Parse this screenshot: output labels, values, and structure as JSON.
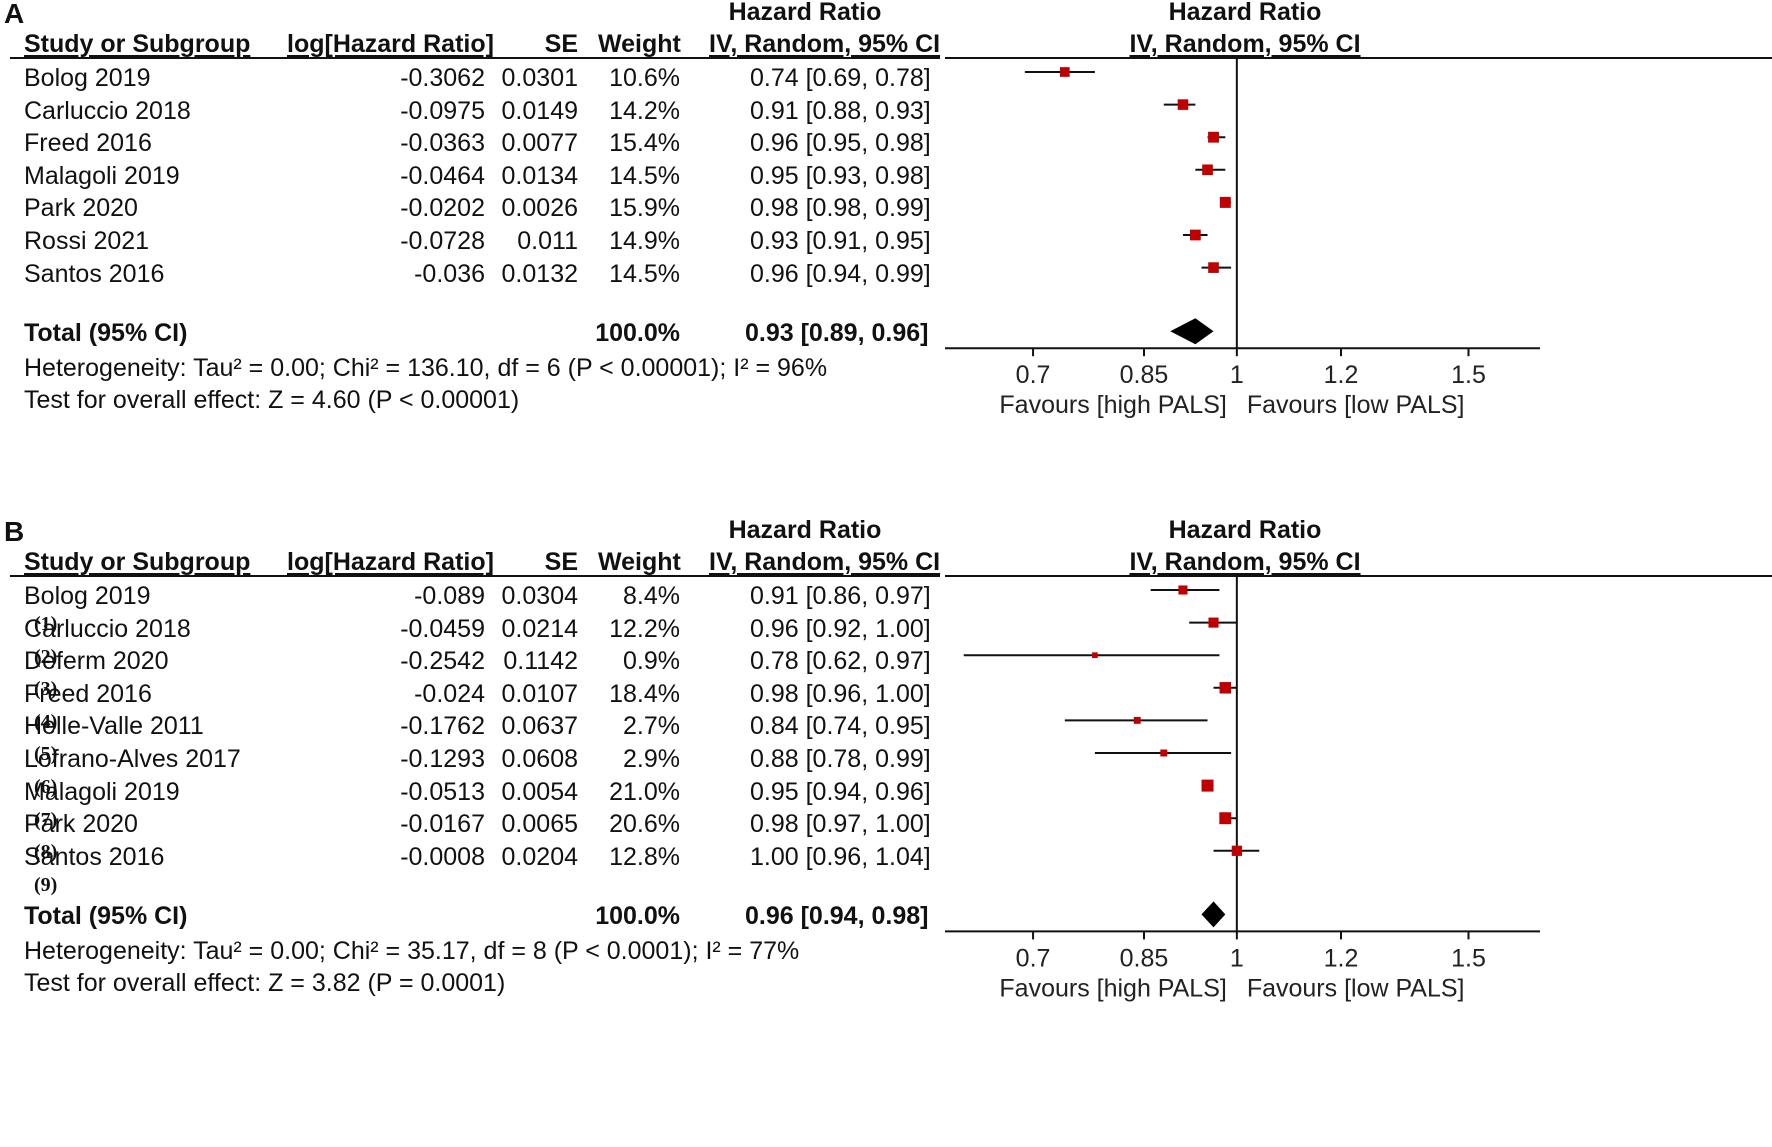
{
  "chart_data": [
    {
      "type": "forest",
      "panel_label": "A",
      "columns": {
        "study": "Study or Subgroup",
        "loghr": "log[Hazard Ratio]",
        "se": "SE",
        "weight": "Weight",
        "hr_title": "Hazard Ratio",
        "hr_sub": "IV, Random, 95% CI",
        "plot_title": "Hazard Ratio",
        "plot_sub": "IV, Random, 95% CI"
      },
      "studies": [
        {
          "name": "Bolog 2019",
          "note": "",
          "loghr": "-0.3062",
          "se": "0.0301",
          "weight": "10.6%",
          "ci_text": "0.74 [0.69, 0.78]",
          "hr": 0.74,
          "lo": 0.69,
          "hi": 0.78,
          "w": 10.6
        },
        {
          "name": "Carluccio 2018",
          "note": "",
          "loghr": "-0.0975",
          "se": "0.0149",
          "weight": "14.2%",
          "ci_text": "0.91 [0.88, 0.93]",
          "hr": 0.91,
          "lo": 0.88,
          "hi": 0.93,
          "w": 14.2
        },
        {
          "name": "Freed 2016",
          "note": "",
          "loghr": "-0.0363",
          "se": "0.0077",
          "weight": "15.4%",
          "ci_text": "0.96 [0.95, 0.98]",
          "hr": 0.96,
          "lo": 0.95,
          "hi": 0.98,
          "w": 15.4
        },
        {
          "name": "Malagoli 2019",
          "note": "",
          "loghr": "-0.0464",
          "se": "0.0134",
          "weight": "14.5%",
          "ci_text": "0.95 [0.93, 0.98]",
          "hr": 0.95,
          "lo": 0.93,
          "hi": 0.98,
          "w": 14.5
        },
        {
          "name": "Park 2020",
          "note": "",
          "loghr": "-0.0202",
          "se": "0.0026",
          "weight": "15.9%",
          "ci_text": "0.98 [0.98, 0.99]",
          "hr": 0.98,
          "lo": 0.98,
          "hi": 0.99,
          "w": 15.9
        },
        {
          "name": "Rossi 2021",
          "note": "",
          "loghr": "-0.0728",
          "se": "0.011",
          "weight": "14.9%",
          "ci_text": "0.93 [0.91, 0.95]",
          "hr": 0.93,
          "lo": 0.91,
          "hi": 0.95,
          "w": 14.9
        },
        {
          "name": "Santos 2016",
          "note": "",
          "loghr": "-0.036",
          "se": "0.0132",
          "weight": "14.5%",
          "ci_text": "0.96 [0.94, 0.99]",
          "hr": 0.96,
          "lo": 0.94,
          "hi": 0.99,
          "w": 14.5
        }
      ],
      "total": {
        "label": "Total (95% CI)",
        "weight": "100.0%",
        "ci_text": "0.93 [0.89, 0.96]",
        "hr": 0.93,
        "lo": 0.89,
        "hi": 0.96
      },
      "heterogeneity": "Heterogeneity: Tau² = 0.00; Chi² = 136.10, df = 6 (P < 0.00001); I² = 96%",
      "overall_effect": "Test for overall effect: Z = 4.60 (P < 0.00001)",
      "axis": {
        "scale": "log",
        "xlim": [
          0.6,
          1.7
        ],
        "ticks": [
          0.7,
          0.85,
          1,
          1.2,
          1.5
        ],
        "tick_labels": [
          "0.7",
          "0.85",
          "1",
          "1.2",
          "1.5"
        ],
        "null_line": 1
      },
      "favours_left": "Favours [high PALS]",
      "favours_right": "Favours [low PALS]"
    },
    {
      "type": "forest",
      "panel_label": "B",
      "columns": {
        "study": "Study or Subgroup",
        "loghr": "log[Hazard Ratio]",
        "se": "SE",
        "weight": "Weight",
        "hr_title": "Hazard Ratio",
        "hr_sub": "IV, Random, 95% CI",
        "plot_title": "Hazard Ratio",
        "plot_sub": "IV, Random, 95% CI"
      },
      "studies": [
        {
          "name": "Bolog 2019",
          "note": "(1)",
          "loghr": "-0.089",
          "se": "0.0304",
          "weight": "8.4%",
          "ci_text": "0.91 [0.86, 0.97]",
          "hr": 0.91,
          "lo": 0.86,
          "hi": 0.97,
          "w": 8.4
        },
        {
          "name": "Carluccio 2018",
          "note": "(2)",
          "loghr": "-0.0459",
          "se": "0.0214",
          "weight": "12.2%",
          "ci_text": "0.96 [0.92, 1.00]",
          "hr": 0.96,
          "lo": 0.92,
          "hi": 1.0,
          "w": 12.2
        },
        {
          "name": "Deferm 2020",
          "note": "(3)",
          "loghr": "-0.2542",
          "se": "0.1142",
          "weight": "0.9%",
          "ci_text": "0.78 [0.62, 0.97]",
          "hr": 0.78,
          "lo": 0.62,
          "hi": 0.97,
          "w": 0.9
        },
        {
          "name": "Freed 2016",
          "note": "(4)",
          "loghr": "-0.024",
          "se": "0.0107",
          "weight": "18.4%",
          "ci_text": "0.98 [0.96, 1.00]",
          "hr": 0.98,
          "lo": 0.96,
          "hi": 1.0,
          "w": 18.4
        },
        {
          "name": "Helle-Valle 2011",
          "note": "(5)",
          "loghr": "-0.1762",
          "se": "0.0637",
          "weight": "2.7%",
          "ci_text": "0.84 [0.74, 0.95]",
          "hr": 0.84,
          "lo": 0.74,
          "hi": 0.95,
          "w": 2.7
        },
        {
          "name": "Lofrano-Alves 2017",
          "note": "(6)",
          "loghr": "-0.1293",
          "se": "0.0608",
          "weight": "2.9%",
          "ci_text": "0.88 [0.78, 0.99]",
          "hr": 0.88,
          "lo": 0.78,
          "hi": 0.99,
          "w": 2.9
        },
        {
          "name": "Malagoli 2019",
          "note": "(7)",
          "loghr": "-0.0513",
          "se": "0.0054",
          "weight": "21.0%",
          "ci_text": "0.95 [0.94, 0.96]",
          "hr": 0.95,
          "lo": 0.94,
          "hi": 0.96,
          "w": 21.0
        },
        {
          "name": "Park 2020",
          "note": "(8)",
          "loghr": "-0.0167",
          "se": "0.0065",
          "weight": "20.6%",
          "ci_text": "0.98 [0.97, 1.00]",
          "hr": 0.98,
          "lo": 0.97,
          "hi": 1.0,
          "w": 20.6
        },
        {
          "name": "Santos 2016",
          "note": "(9)",
          "loghr": "-0.0008",
          "se": "0.0204",
          "weight": "12.8%",
          "ci_text": "1.00 [0.96, 1.04]",
          "hr": 1.0,
          "lo": 0.96,
          "hi": 1.04,
          "w": 12.8
        }
      ],
      "total": {
        "label": "Total (95% CI)",
        "weight": "100.0%",
        "ci_text": "0.96 [0.94, 0.98]",
        "hr": 0.96,
        "lo": 0.94,
        "hi": 0.98
      },
      "heterogeneity": "Heterogeneity: Tau² = 0.00; Chi² = 35.17, df = 8 (P < 0.0001); I² = 77%",
      "overall_effect": "Test for overall effect: Z = 3.82 (P = 0.0001)",
      "axis": {
        "scale": "log",
        "xlim": [
          0.6,
          1.7
        ],
        "ticks": [
          0.7,
          0.85,
          1,
          1.2,
          1.5
        ],
        "tick_labels": [
          "0.7",
          "0.85",
          "1",
          "1.2",
          "1.5"
        ],
        "null_line": 1
      },
      "favours_left": "Favours [high PALS]",
      "favours_right": "Favours [low PALS]"
    }
  ],
  "colors": {
    "marker": "#c00000",
    "diamond": "#000000",
    "line": "#111111"
  }
}
